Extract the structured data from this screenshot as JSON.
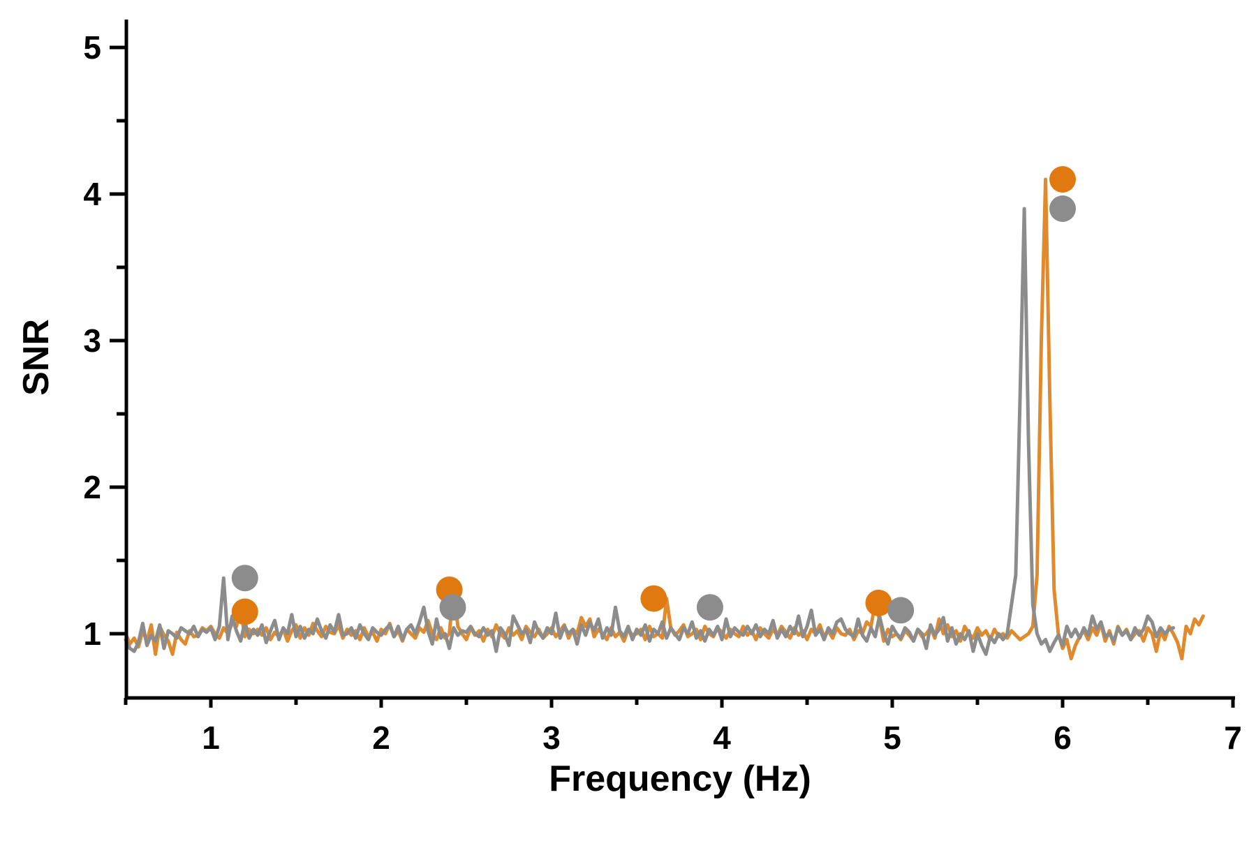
{
  "chart_data": {
    "type": "line",
    "title": "",
    "xlabel": "Frequency (Hz)",
    "ylabel": "SNR",
    "xlim": [
      0.5,
      7.0
    ],
    "ylim": [
      0.6,
      5.2
    ],
    "x_ticks": [
      1,
      2,
      3,
      4,
      5,
      6,
      7
    ],
    "x_tick_labels": [
      "1",
      "2",
      "3",
      "4",
      "5",
      "6",
      "7"
    ],
    "y_ticks": [
      1,
      2,
      3,
      4,
      5
    ],
    "y_tick_labels": [
      "1",
      "2",
      "3",
      "4",
      "5"
    ],
    "grid": false,
    "legend": "none",
    "series": [
      {
        "color": "#E08A2E",
        "x_start": 0.5,
        "x_step": 0.025,
        "values": [
          1.0,
          0.93,
          0.97,
          0.91,
          1.02,
          0.95,
          1.06,
          0.86,
          1.05,
          0.99,
          0.95,
          0.86,
          1.01,
          0.96,
          0.93,
          1.02,
          0.98,
          0.99,
          1.04,
          1.02,
          1.05,
          1.0,
          0.97,
          1.04,
          1.0,
          1.07,
          1.05,
          1.16,
          0.98,
          1.03,
          1.0,
          1.03,
          0.99,
          1.04,
          0.96,
          1.01,
          0.98,
          1.03,
          0.95,
          1.02,
          1.06,
          0.97,
          1.04,
          0.99,
          1.07,
          1.02,
          0.98,
          1.05,
          1.01,
          1.0,
          1.06,
          0.97,
          1.03,
          0.99,
          1.02,
          0.96,
          1.04,
          0.98,
          1.01,
          0.95,
          1.03,
          1.0,
          1.07,
          0.98,
          1.02,
          0.95,
          1.03,
          1.0,
          0.97,
          1.04,
          1.01,
          1.09,
          1.0,
          0.96,
          1.04,
          0.97,
          1.0,
          1.31,
          1.05,
          1.0,
          0.96,
          1.04,
          0.99,
          1.02,
          0.95,
          1.03,
          0.98,
          1.06,
          1.0,
          0.97,
          1.04,
          0.99,
          1.02,
          0.96,
          1.05,
          1.01,
          0.98,
          1.03,
          0.97,
          1.0,
          1.04,
          0.98,
          1.02,
          1.06,
          0.97,
          1.03,
          1.0,
          1.11,
          1.05,
          1.1,
          0.98,
          1.03,
          1.0,
          0.96,
          1.04,
          0.98,
          1.01,
          0.95,
          1.03,
          0.99,
          1.0,
          1.03,
          0.96,
          1.05,
          0.98,
          1.0,
          0.97,
          1.24,
          1.04,
          0.99,
          1.02,
          1.06,
          0.98,
          1.0,
          1.03,
          0.96,
          1.05,
          1.0,
          0.98,
          1.04,
          1.01,
          0.97,
          1.03,
          1.0,
          0.98,
          1.05,
          0.99,
          1.02,
          0.96,
          1.04,
          1.0,
          0.97,
          1.03,
          0.99,
          1.05,
          1.01,
          0.97,
          1.04,
          0.99,
          1.02,
          0.96,
          1.03,
          1.0,
          1.06,
          0.98,
          1.02,
          0.97,
          1.04,
          1.0,
          0.99,
          1.03,
          0.96,
          1.02,
          1.0,
          1.08,
          1.05,
          1.21,
          1.1,
          0.95,
          1.03,
          0.98,
          1.0,
          0.96,
          1.02,
          0.99,
          0.95,
          1.03,
          0.98,
          1.0,
          1.04,
          0.97,
          1.1,
          1.0,
          1.06,
          0.98,
          1.02,
          0.95,
          1.05,
          1.0,
          0.97,
          1.04,
          0.99,
          1.02,
          0.96,
          1.03,
          0.98,
          1.0,
          0.97,
          1.02,
          0.99,
          0.96,
          0.98,
          1.0,
          1.05,
          1.4,
          3.0,
          4.1,
          2.6,
          1.3,
          1.0,
          0.9,
          0.96,
          0.83,
          0.92,
          0.98,
          1.02,
          0.96,
          1.04,
          0.99,
          1.07,
          0.95,
          1.02,
          0.93,
          1.05,
          0.99,
          1.03,
          0.96,
          1.0,
          1.02,
          0.95,
          1.04,
          1.0,
          0.88,
          1.02,
          0.96,
          1.05,
          1.0,
          0.94,
          0.83,
          1.05,
          1.0,
          1.1,
          1.06,
          1.12
        ]
      },
      {
        "color": "#8C8C8C",
        "x_start": 0.5,
        "x_step": 0.025,
        "values": [
          0.96,
          0.9,
          0.88,
          0.94,
          1.07,
          0.92,
          0.99,
          0.95,
          1.06,
          0.9,
          1.02,
          1.0,
          0.97,
          1.04,
          1.02,
          1.0,
          1.05,
          0.98,
          1.03,
          1.01,
          1.04,
          0.96,
          1.05,
          1.38,
          0.96,
          1.12,
          1.02,
          0.95,
          1.08,
          0.97,
          1.03,
          0.99,
          1.06,
          0.94,
          1.02,
          1.09,
          0.96,
          1.04,
          1.0,
          1.13,
          0.98,
          1.05,
          0.97,
          1.03,
          1.0,
          1.1,
          1.02,
          0.97,
          1.06,
          1.01,
          1.13,
          0.99,
          1.0,
          1.04,
          0.97,
          1.06,
          1.0,
          0.96,
          1.04,
          1.01,
          0.99,
          1.03,
          1.06,
          0.98,
          1.05,
          0.96,
          1.03,
          1.06,
          1.0,
          1.08,
          1.18,
          1.02,
          0.93,
          1.1,
          0.97,
          1.0,
          0.9,
          1.04,
          0.99,
          1.02,
          1.01,
          1.05,
          1.0,
          0.98,
          1.04,
          0.99,
          1.02,
          0.88,
          1.04,
          1.0,
          0.92,
          1.12,
          1.06,
          1.0,
          1.03,
          0.94,
          1.08,
          1.01,
          0.97,
          1.04,
          1.0,
          1.14,
          0.97,
          1.05,
          1.0,
          1.03,
          0.93,
          1.06,
          0.99,
          1.08,
          1.02,
          1.1,
          0.97,
          1.04,
          0.99,
          1.18,
          1.02,
          0.98,
          1.05,
          0.96,
          1.03,
          0.99,
          1.06,
          0.95,
          1.03,
          1.0,
          1.08,
          0.97,
          1.04,
          1.0,
          0.96,
          1.04,
          1.0,
          1.08,
          0.97,
          1.02,
          0.95,
          1.03,
          0.99,
          1.05,
          0.96,
          1.1,
          0.98,
          1.04,
          1.01,
          0.99,
          1.05,
          1.0,
          1.06,
          0.98,
          1.03,
          1.0,
          1.09,
          0.97,
          1.03,
          0.98,
          1.05,
          1.0,
          1.12,
          0.98,
          1.05,
          1.16,
          0.99,
          1.03,
          0.96,
          1.04,
          1.0,
          1.08,
          1.1,
          1.03,
          1.0,
          0.98,
          1.1,
          0.99,
          0.95,
          1.04,
          0.98,
          1.12,
          1.0,
          0.93,
          1.05,
          1.0,
          0.97,
          1.04,
          1.01,
          0.95,
          1.03,
          1.0,
          0.9,
          1.06,
          0.99,
          1.03,
          1.11,
          0.95,
          1.04,
          0.93,
          1.0,
          0.96,
          1.02,
          0.88,
          1.0,
          0.92,
          0.86,
          0.98,
          0.94,
          1.0,
          0.96,
          1.0,
          1.2,
          1.4,
          2.6,
          3.9,
          2.3,
          1.2,
          1.0,
          0.93,
          0.96,
          0.88,
          0.94,
          0.99,
          0.92,
          1.05,
          0.98,
          1.03,
          0.97,
          1.04,
          0.99,
          1.12,
          1.03,
          1.08,
          0.98,
          1.0,
          0.95,
          1.04,
          0.99,
          1.02,
          0.96,
          1.04,
          0.99,
          1.03,
          1.12,
          1.08,
          0.98,
          1.04,
          1.0,
          1.03,
          1.04
        ]
      }
    ],
    "markers": [
      {
        "x": 1.2,
        "y": 1.15,
        "color": "#E07A10"
      },
      {
        "x": 2.4,
        "y": 1.3,
        "color": "#E07A10"
      },
      {
        "x": 3.6,
        "y": 1.24,
        "color": "#E07A10"
      },
      {
        "x": 4.92,
        "y": 1.21,
        "color": "#E07A10"
      },
      {
        "x": 6.0,
        "y": 4.1,
        "color": "#E07A10"
      },
      {
        "x": 1.2,
        "y": 1.38,
        "color": "#8C8C8C"
      },
      {
        "x": 2.42,
        "y": 1.18,
        "color": "#8C8C8C"
      },
      {
        "x": 3.93,
        "y": 1.18,
        "color": "#8C8C8C"
      },
      {
        "x": 5.05,
        "y": 1.16,
        "color": "#8C8C8C"
      },
      {
        "x": 6.0,
        "y": 3.9,
        "color": "#8C8C8C"
      }
    ]
  }
}
